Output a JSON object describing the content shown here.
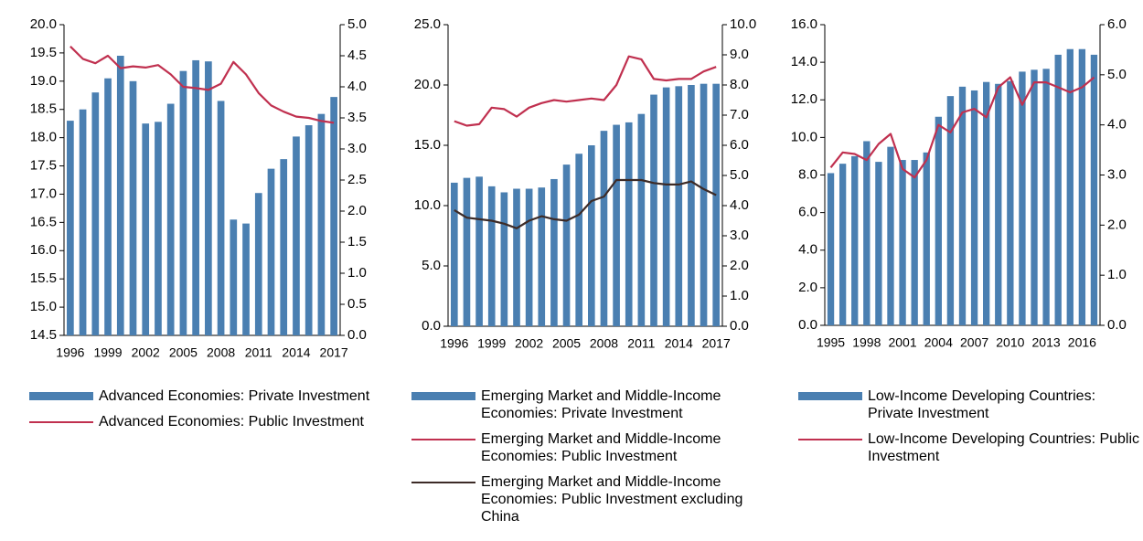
{
  "chart_data": [
    {
      "type": "bar_line",
      "categories": [
        "1996",
        null,
        null,
        "1999",
        null,
        null,
        "2002",
        null,
        null,
        "2005",
        null,
        null,
        "2008",
        null,
        null,
        "2011",
        null,
        null,
        "2014",
        null,
        null,
        "2017"
      ],
      "series": [
        {
          "name": "Advanced Economies: Private Investment",
          "type": "bar",
          "color": "#4a7fb1",
          "values": [
            18.3,
            18.5,
            18.8,
            19.05,
            19.45,
            19.0,
            18.25,
            18.28,
            18.6,
            19.18,
            19.37,
            19.35,
            18.65,
            16.55,
            16.48,
            17.02,
            17.45,
            17.62,
            18.02,
            18.22,
            18.42,
            18.72
          ]
        },
        {
          "name": "Advanced Economies: Public Investment",
          "type": "line",
          "axis": "y2",
          "color": "#c0304f",
          "values": [
            4.65,
            4.45,
            4.38,
            4.5,
            4.3,
            4.33,
            4.31,
            4.35,
            4.2,
            4.0,
            3.98,
            3.95,
            4.05,
            4.4,
            4.2,
            3.9,
            3.7,
            3.6,
            3.52,
            3.5,
            3.45,
            3.42
          ]
        }
      ],
      "ylim": [
        14.5,
        20.0
      ],
      "yticks": [
        14.5,
        {
          "value": 15.0,
          "label": "15.0"
        },
        15.5,
        {
          "value": 16.0,
          "label": "16.0"
        },
        16.5,
        {
          "value": 17.0,
          "label": "17.0"
        },
        17.5,
        {
          "value": 18.0,
          "label": "18.0"
        },
        18.5,
        {
          "value": 19.0,
          "label": "19.0"
        },
        19.5,
        {
          "value": 20.0,
          "label": "20.0"
        }
      ],
      "y2lim": [
        0,
        5.0
      ],
      "y2ticks": [
        {
          "value": 0,
          "label": "0.0"
        },
        0.5,
        {
          "value": 1.0,
          "label": "1.0"
        },
        1.5,
        {
          "value": 2.0,
          "label": "2.0"
        },
        2.5,
        {
          "value": 3.0,
          "label": "3.0"
        },
        3.5,
        {
          "value": 4.0,
          "label": "4.0"
        },
        4.5,
        {
          "value": 5.0,
          "label": "5.0"
        }
      ]
    },
    {
      "type": "bar_line",
      "categories": [
        "1996",
        null,
        null,
        "1999",
        null,
        null,
        "2002",
        null,
        null,
        "2005",
        null,
        null,
        "2008",
        null,
        null,
        "2011",
        null,
        null,
        "2014",
        null,
        null,
        "2017"
      ],
      "series": [
        {
          "name": "Emerging Market and Middle-Income Economies: Private Investment",
          "type": "bar",
          "color": "#4a7fb1",
          "values": [
            11.9,
            12.3,
            12.4,
            11.6,
            11.1,
            11.4,
            11.4,
            11.5,
            12.2,
            13.4,
            14.3,
            15.0,
            16.2,
            16.7,
            16.9,
            17.6,
            19.2,
            19.8,
            19.9,
            20.0,
            20.1,
            20.1
          ]
        },
        {
          "name": "Emerging Market and Middle-Income Economies: Public Investment",
          "type": "line",
          "axis": "y2",
          "color": "#c0304f",
          "values": [
            6.8,
            6.65,
            6.7,
            7.25,
            7.2,
            6.95,
            7.25,
            7.4,
            7.5,
            7.45,
            7.5,
            7.55,
            7.5,
            8.0,
            8.95,
            8.85,
            8.2,
            8.15,
            8.2,
            8.2,
            8.45,
            8.6
          ]
        },
        {
          "name": "Emerging Market and Middle-Income Economies: Public Investment excluding China",
          "type": "line",
          "axis": "y2",
          "color": "#3d2b27",
          "values": [
            3.85,
            3.6,
            3.55,
            3.5,
            3.4,
            3.25,
            3.5,
            3.65,
            3.55,
            3.5,
            3.7,
            4.15,
            4.3,
            4.85,
            4.85,
            4.85,
            4.75,
            4.7,
            4.7,
            4.8,
            4.55,
            4.35
          ]
        }
      ],
      "ylim": [
        0,
        25.0
      ],
      "yticks": [
        {
          "value": 0,
          "label": "0.0"
        },
        {
          "value": 5.0,
          "label": "5.0"
        },
        {
          "value": 10.0,
          "label": "10.0"
        },
        {
          "value": 15.0,
          "label": "15.0"
        },
        {
          "value": 20.0,
          "label": "20.0"
        },
        {
          "value": 25.0,
          "label": "25.0"
        }
      ],
      "y2lim": [
        0,
        10.0
      ],
      "y2ticks": [
        {
          "value": 0,
          "label": "0.0"
        },
        {
          "value": 1.0,
          "label": "1.0"
        },
        {
          "value": 2.0,
          "label": "2.0"
        },
        {
          "value": 3.0,
          "label": "3.0"
        },
        {
          "value": 4.0,
          "label": "4.0"
        },
        {
          "value": 5.0,
          "label": "5.0"
        },
        {
          "value": 6.0,
          "label": "6.0"
        },
        {
          "value": 7.0,
          "label": "7.0"
        },
        {
          "value": 8.0,
          "label": "8.0"
        },
        {
          "value": 9.0,
          "label": "9.0"
        },
        {
          "value": 10.0,
          "label": "10.0"
        }
      ]
    },
    {
      "type": "bar_line",
      "categories": [
        "1995",
        null,
        null,
        "1998",
        null,
        null,
        "2001",
        null,
        null,
        "2004",
        null,
        null,
        "2007",
        null,
        null,
        "2010",
        null,
        null,
        "2013",
        null,
        null,
        "2016",
        null
      ],
      "series": [
        {
          "name": "Low-Income Developing Countries: Private Investment",
          "type": "bar",
          "color": "#4a7fb1",
          "values": [
            8.1,
            8.6,
            9.0,
            9.8,
            8.7,
            9.5,
            8.8,
            8.8,
            9.2,
            11.1,
            12.2,
            12.7,
            12.5,
            12.95,
            12.85,
            13.0,
            13.5,
            13.6,
            13.65,
            14.4,
            14.7,
            14.7,
            14.4
          ]
        },
        {
          "name": "Low-Income Developing Countries: Public Investment",
          "type": "line",
          "axis": "y2",
          "color": "#c0304f",
          "values": [
            3.15,
            3.45,
            3.42,
            3.3,
            3.62,
            3.82,
            3.12,
            2.95,
            3.3,
            4.0,
            3.85,
            4.25,
            4.32,
            4.15,
            4.75,
            4.95,
            4.4,
            4.85,
            4.85,
            4.75,
            4.65,
            4.75,
            4.95
          ]
        }
      ],
      "ylim": [
        0,
        16.0
      ],
      "yticks": [
        {
          "value": 0,
          "label": "0.0"
        },
        {
          "value": 2.0,
          "label": "2.0"
        },
        {
          "value": 4.0,
          "label": "4.0"
        },
        {
          "value": 6.0,
          "label": "6.0"
        },
        {
          "value": 8.0,
          "label": "8.0"
        },
        {
          "value": 10.0,
          "label": "10.0"
        },
        {
          "value": 12.0,
          "label": "12.0"
        },
        {
          "value": 14.0,
          "label": "14.0"
        },
        {
          "value": 16.0,
          "label": "16.0"
        }
      ],
      "y2lim": [
        0,
        6.0
      ],
      "y2ticks": [
        {
          "value": 0,
          "label": "0.0"
        },
        {
          "value": 1.0,
          "label": "1.0"
        },
        {
          "value": 2.0,
          "label": "2.0"
        },
        {
          "value": 3.0,
          "label": "3.0"
        },
        {
          "value": 4.0,
          "label": "4.0"
        },
        {
          "value": 5.0,
          "label": "5.0"
        },
        {
          "value": 6.0,
          "label": "6.0"
        }
      ]
    }
  ]
}
